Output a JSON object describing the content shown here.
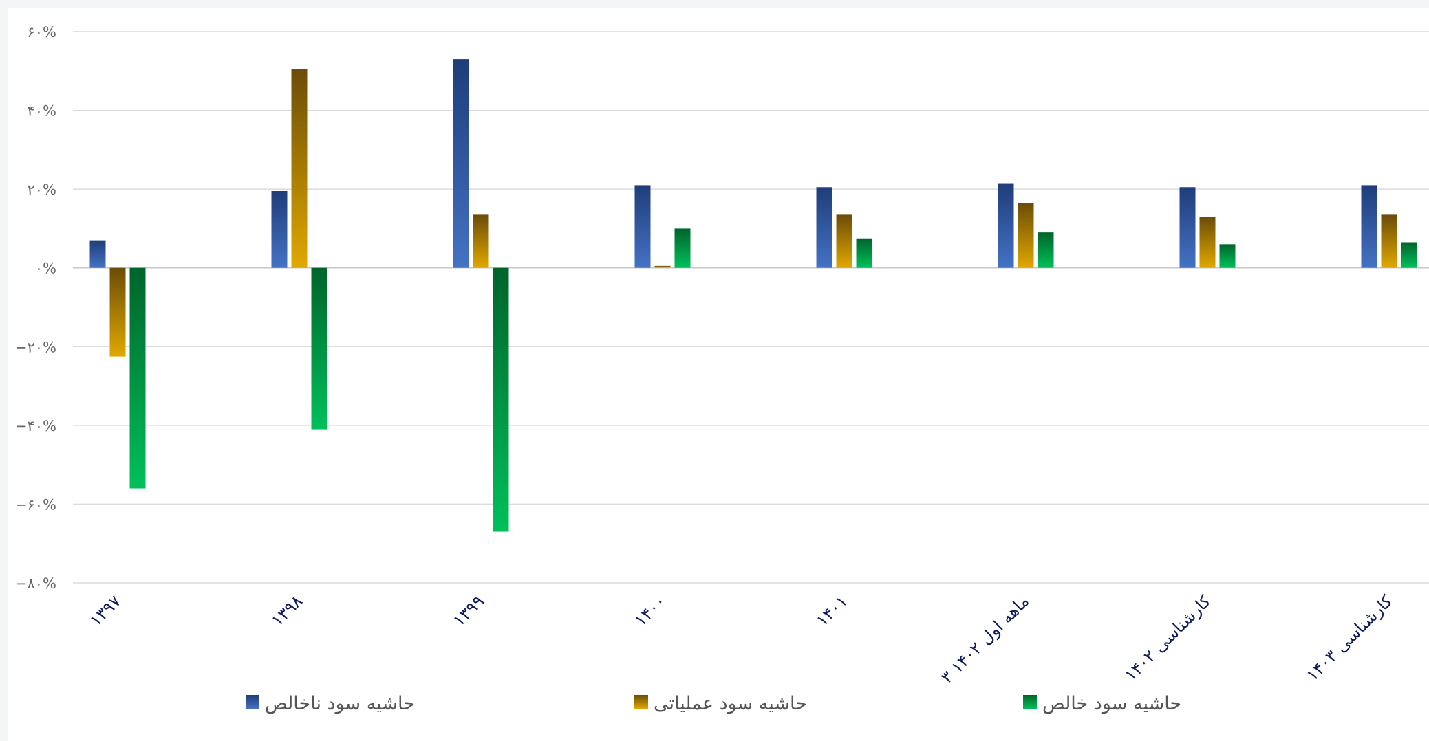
{
  "chart_data": {
    "type": "bar",
    "categories": [
      "۱۳۹۷",
      "۱۳۹۸",
      "۱۳۹۹",
      "۱۴۰۰",
      "۱۴۰۱",
      "۳ ماهه اول ۱۴۰۲",
      "کارشناسی ۱۴۰۲",
      "کارشناسی ۱۴۰۳"
    ],
    "series": [
      {
        "name": "حاشیه سود ناخالص",
        "values": [
          7,
          19.5,
          53,
          21,
          20.5,
          21.5,
          20.5,
          21
        ],
        "color_top": "#1f3d7a",
        "color_bottom": "#4472c4"
      },
      {
        "name": "حاشیه سود عملیاتی",
        "values": [
          -22.5,
          50.5,
          13.5,
          0.5,
          13.5,
          16.5,
          13,
          13.5
        ],
        "color_top": "#6b4c08",
        "color_bottom": "#e0a800"
      },
      {
        "name": "حاشیه سود خالص",
        "values": [
          -56,
          -41,
          -67,
          10,
          7.5,
          9,
          6,
          6.5
        ],
        "color_top": "#00642a",
        "color_bottom": "#00c05a"
      }
    ],
    "y_ticks": [
      60,
      40,
      20,
      0,
      -20,
      -40,
      -60,
      -80
    ],
    "y_tick_labels": [
      "۶۰%",
      "۴۰%",
      "۲۰%",
      "۰%",
      "−۲۰%",
      "−۴۰%",
      "−۶۰%",
      "−۸۰%"
    ],
    "ylim": [
      -80,
      60
    ],
    "grid": true,
    "legend_position": "bottom"
  }
}
